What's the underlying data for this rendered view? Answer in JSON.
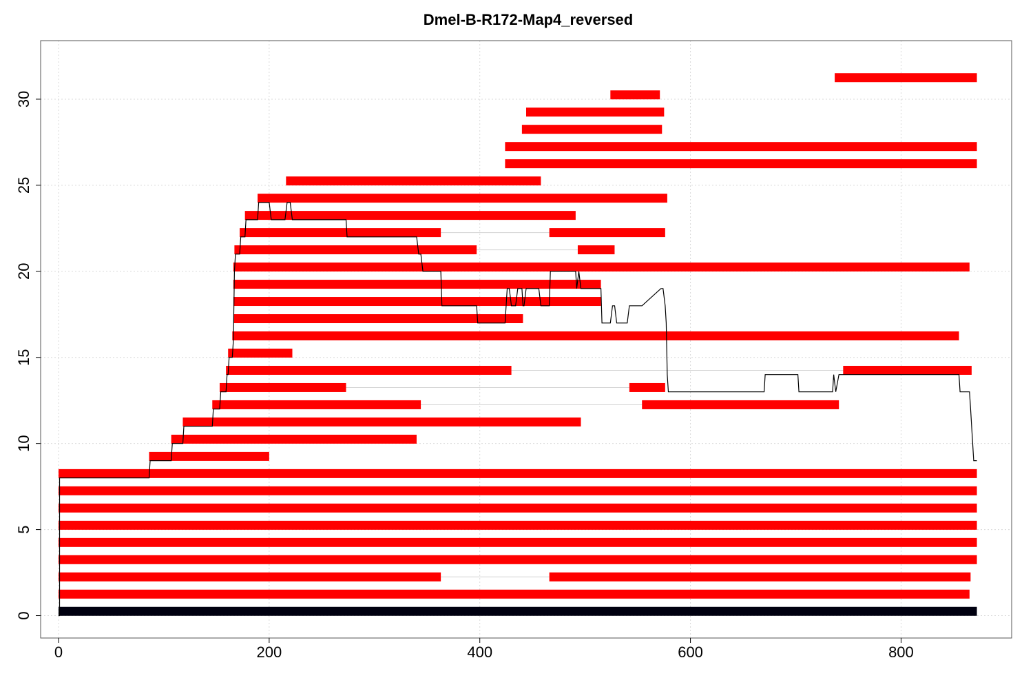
{
  "chart_data": {
    "type": "bar",
    "subtype": "horizontal segment (read alignment) plot with coverage line",
    "title": "Dmel-B-R172-Map4_reversed",
    "xlabel": "",
    "ylabel": "",
    "xlim": [
      -17,
      905
    ],
    "ylim": [
      -1.3,
      33.4
    ],
    "x_ticks": [
      0,
      200,
      400,
      600,
      800
    ],
    "y_ticks": [
      0,
      5,
      10,
      15,
      20,
      25,
      30
    ],
    "grid": true,
    "legend": "none",
    "colors": {
      "segment": "#ff0000",
      "reference": "#000010",
      "coverage_line": "#000000",
      "gap_line": "#d3d3d3",
      "grid": "#d9d9d9"
    },
    "reference_bar": {
      "start": 0,
      "end": 872,
      "y": 0.25
    },
    "segments": [
      {
        "y": 1.25,
        "start": 0,
        "end": 865
      },
      {
        "y": 2.25,
        "start": 0,
        "end": 363
      },
      {
        "y": 2.25,
        "start": 466,
        "end": 866
      },
      {
        "y": 3.25,
        "start": 0,
        "end": 872
      },
      {
        "y": 4.25,
        "start": 0,
        "end": 872
      },
      {
        "y": 5.25,
        "start": 0,
        "end": 872
      },
      {
        "y": 6.25,
        "start": 0,
        "end": 872
      },
      {
        "y": 7.25,
        "start": 0,
        "end": 872
      },
      {
        "y": 8.25,
        "start": 0,
        "end": 872
      },
      {
        "y": 9.25,
        "start": 86,
        "end": 200
      },
      {
        "y": 10.25,
        "start": 107,
        "end": 340
      },
      {
        "y": 11.25,
        "start": 118,
        "end": 496
      },
      {
        "y": 12.25,
        "start": 146,
        "end": 344
      },
      {
        "y": 12.25,
        "start": 554,
        "end": 741
      },
      {
        "y": 13.25,
        "start": 153,
        "end": 273
      },
      {
        "y": 13.25,
        "start": 542,
        "end": 576
      },
      {
        "y": 14.25,
        "start": 159,
        "end": 430
      },
      {
        "y": 14.25,
        "start": 745,
        "end": 867
      },
      {
        "y": 15.25,
        "start": 161,
        "end": 222
      },
      {
        "y": 16.25,
        "start": 165,
        "end": 855
      },
      {
        "y": 17.25,
        "start": 166,
        "end": 441
      },
      {
        "y": 18.25,
        "start": 166,
        "end": 515
      },
      {
        "y": 19.25,
        "start": 166,
        "end": 515
      },
      {
        "y": 20.25,
        "start": 166,
        "end": 865
      },
      {
        "y": 21.25,
        "start": 167,
        "end": 397
      },
      {
        "y": 21.25,
        "start": 493,
        "end": 528
      },
      {
        "y": 22.25,
        "start": 172,
        "end": 363
      },
      {
        "y": 22.25,
        "start": 466,
        "end": 576
      },
      {
        "y": 23.25,
        "start": 177,
        "end": 491
      },
      {
        "y": 24.25,
        "start": 189,
        "end": 578
      },
      {
        "y": 25.25,
        "start": 216,
        "end": 458
      },
      {
        "y": 26.25,
        "start": 424,
        "end": 872
      },
      {
        "y": 27.25,
        "start": 424,
        "end": 872
      },
      {
        "y": 28.25,
        "start": 440,
        "end": 573
      },
      {
        "y": 29.25,
        "start": 444,
        "end": 575
      },
      {
        "y": 30.25,
        "start": 524,
        "end": 571
      },
      {
        "y": 31.25,
        "start": 737,
        "end": 872
      }
    ],
    "coverage": {
      "x": [
        0,
        1,
        1,
        2,
        86,
        87,
        107,
        108,
        118,
        119,
        146,
        147,
        153,
        154,
        159,
        160,
        161,
        162,
        165,
        166,
        167,
        168,
        172,
        173,
        177,
        178,
        189,
        190,
        200,
        202,
        215,
        217,
        220,
        222,
        273,
        274,
        340,
        342,
        344,
        346,
        363,
        364,
        397,
        398,
        424,
        426,
        428,
        430,
        434,
        436,
        440,
        441,
        442,
        444,
        446,
        456,
        458,
        466,
        467,
        491,
        492,
        494,
        496,
        515,
        516,
        524,
        526,
        528,
        530,
        540,
        542,
        554,
        572,
        574,
        576,
        577,
        578,
        579,
        670,
        671,
        702,
        703,
        735,
        736,
        738,
        741,
        742,
        855,
        856,
        865,
        866,
        867,
        869,
        872
      ],
      "y": [
        0,
        0,
        8,
        8,
        8,
        9,
        9,
        10,
        10,
        11,
        11,
        12,
        12,
        13,
        13,
        14,
        14,
        15,
        15,
        16,
        20,
        21,
        21,
        22,
        22,
        23,
        23,
        24,
        24,
        23,
        23,
        24,
        24,
        23,
        23,
        22,
        22,
        21,
        21,
        20,
        20,
        18,
        18,
        17,
        17,
        19,
        19,
        18,
        18,
        19,
        19,
        18,
        18,
        19,
        19,
        19,
        18,
        18,
        20,
        20,
        19,
        20,
        19,
        19,
        17,
        17,
        18,
        18,
        17,
        17,
        18,
        18,
        19,
        19,
        18,
        17,
        14,
        13,
        13,
        14,
        14,
        13,
        13,
        14,
        13,
        14,
        14,
        14,
        13,
        13,
        12,
        11,
        9,
        9
      ]
    }
  }
}
